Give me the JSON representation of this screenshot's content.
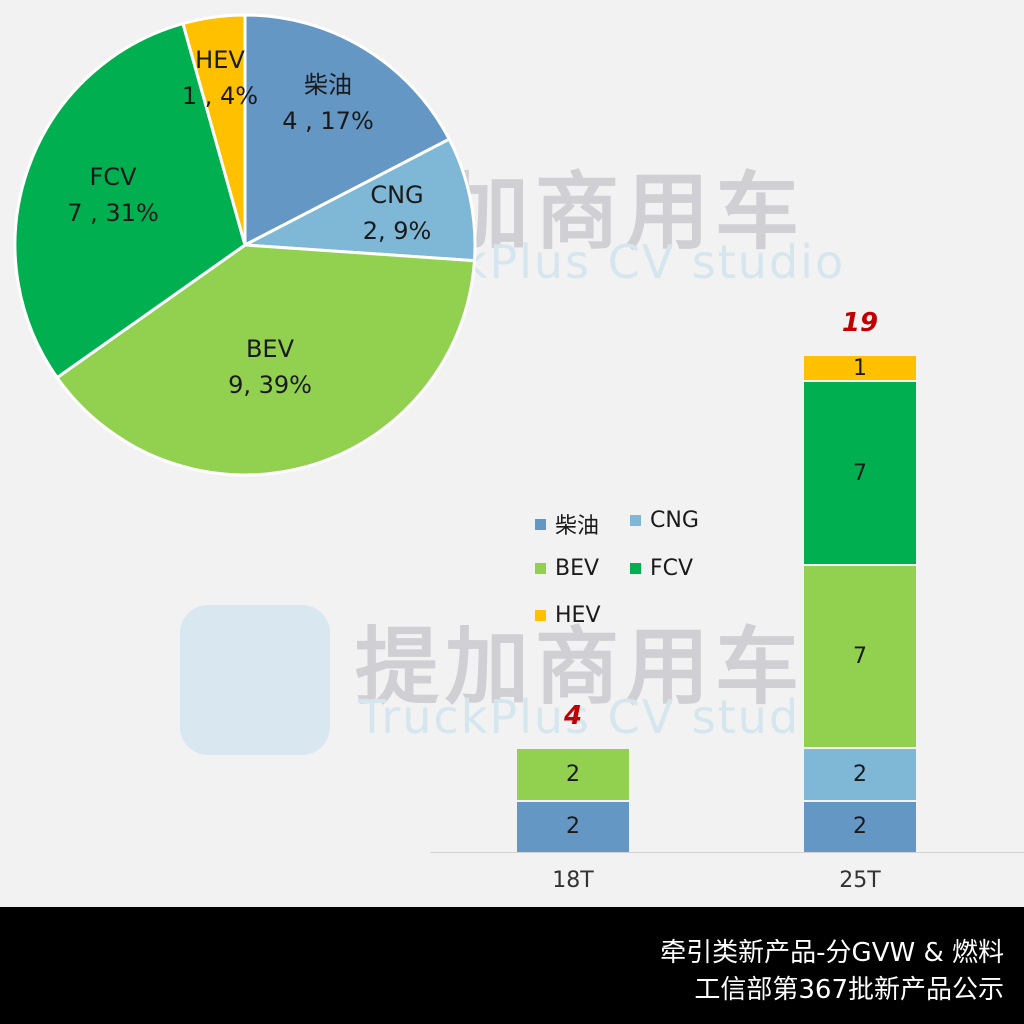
{
  "watermark": {
    "cn": "提加商用车",
    "en": "TruckPlus CV studio"
  },
  "colors": {
    "柴油": "#6497c4",
    "CNG": "#7fb7d6",
    "BEV": "#92d050",
    "FCV": "#00b050",
    "HEV": "#ffc000",
    "total": "#c00000"
  },
  "pie_labels": [
    {
      "name": "柴油",
      "value": "4 , 17%"
    },
    {
      "name": "CNG",
      "value": "2, 9%"
    },
    {
      "name": "BEV",
      "value": "9, 39%"
    },
    {
      "name": "FCV",
      "value": "7 , 31%"
    },
    {
      "name": "HEV",
      "value": "1 , 4%"
    }
  ],
  "bars": [
    {
      "label": "18T",
      "total": "4",
      "segs": [
        "2",
        "",
        "2",
        "",
        ""
      ]
    },
    {
      "label": "25T",
      "total": "19",
      "segs": [
        "2",
        "2",
        "7",
        "7",
        "1"
      ]
    }
  ],
  "legend": [
    "柴油",
    "CNG",
    "BEV",
    "FCV",
    "HEV"
  ],
  "footer": {
    "line1": "牵引类新产品-分GVW  & 燃料",
    "line2": "工信部第367批新产品公示"
  },
  "chart_data": [
    {
      "type": "pie",
      "title": "",
      "categories": [
        "柴油",
        "CNG",
        "BEV",
        "FCV",
        "HEV"
      ],
      "values": [
        4,
        2,
        9,
        7,
        1
      ],
      "percentages": [
        17,
        9,
        39,
        31,
        4
      ],
      "colors": [
        "#6497c4",
        "#7fb7d6",
        "#92d050",
        "#00b050",
        "#ffc000"
      ],
      "start_angle": 90,
      "direction": "clockwise"
    },
    {
      "type": "bar",
      "stacked": true,
      "categories": [
        "18T",
        "25T"
      ],
      "series": [
        {
          "name": "柴油",
          "values": [
            2,
            2
          ]
        },
        {
          "name": "CNG",
          "values": [
            0,
            2
          ]
        },
        {
          "name": "BEV",
          "values": [
            2,
            7
          ]
        },
        {
          "name": "FCV",
          "values": [
            0,
            7
          ]
        },
        {
          "name": "HEV",
          "values": [
            0,
            1
          ]
        }
      ],
      "totals": [
        4,
        19
      ],
      "xlabel": "",
      "ylabel": "",
      "legend_position": "left-inside",
      "grid": false
    }
  ]
}
